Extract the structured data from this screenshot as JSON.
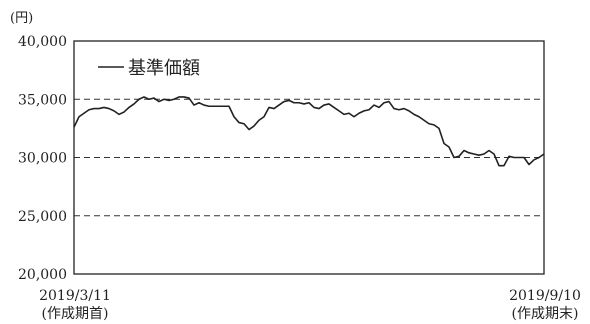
{
  "chart_data": {
    "type": "line",
    "y_unit": "(円)",
    "ylim": [
      20000,
      40000
    ],
    "y_ticks": [
      20000,
      25000,
      30000,
      35000,
      40000
    ],
    "y_tick_labels": [
      "20,000",
      "25,000",
      "30,000",
      "35,000",
      "40,000"
    ],
    "gridlines": [
      25000,
      30000,
      35000
    ],
    "grid_style": "dashed",
    "legend": "top-left",
    "x_start_label": "2019/3/11",
    "x_start_sub": "(作成期首)",
    "x_end_label": "2019/9/10",
    "x_end_sub": "(作成期末)",
    "series": [
      {
        "name": "基準価額",
        "color": "#222222",
        "values": [
          32600,
          33500,
          33800,
          34100,
          34200,
          34200,
          34300,
          34200,
          34000,
          33700,
          33900,
          34300,
          34600,
          35000,
          35200,
          35000,
          35100,
          34800,
          35000,
          34900,
          35000,
          35200,
          35200,
          35100,
          34500,
          34700,
          34500,
          34400,
          34400,
          34400,
          34400,
          34400,
          33500,
          33000,
          32900,
          32400,
          32700,
          33200,
          33500,
          34300,
          34200,
          34500,
          34800,
          34900,
          34700,
          34700,
          34600,
          34700,
          34300,
          34200,
          34500,
          34600,
          34300,
          34000,
          33700,
          33800,
          33500,
          33800,
          34000,
          34100,
          34500,
          34300,
          34700,
          34800,
          34200,
          34100,
          34200,
          34000,
          33700,
          33500,
          33200,
          32900,
          32800,
          32500,
          31200,
          30900,
          30000,
          30100,
          30600,
          30400,
          30300,
          30200,
          30300,
          30600,
          30300,
          29300,
          29300,
          30100,
          30000,
          30000,
          30000,
          29400,
          29800,
          30000,
          30300
        ]
      }
    ]
  }
}
